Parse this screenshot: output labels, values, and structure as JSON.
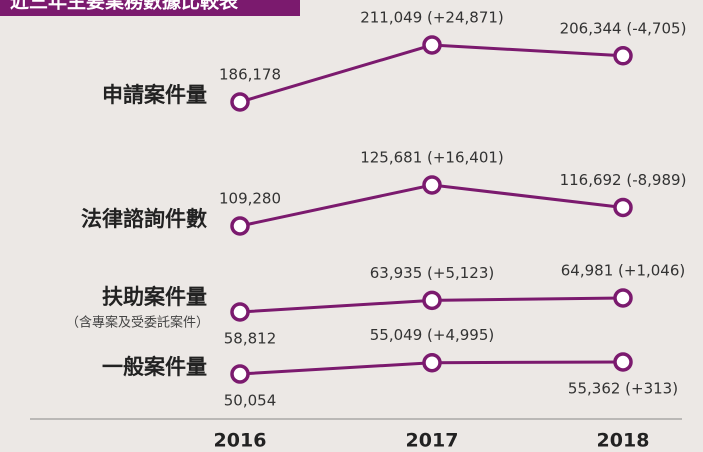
{
  "chart_data": {
    "type": "line",
    "title": "近三年主要業務數據比較表",
    "categories": [
      "2016",
      "2017",
      "2018"
    ],
    "color": "#7b1a6e",
    "series": [
      {
        "name": "申請案件量",
        "values": [
          186178,
          211049,
          206344
        ],
        "value_labels": [
          "186,178",
          "211,049 (+24,871)",
          "206,344 (-4,705)"
        ]
      },
      {
        "name": "法律諮詢件數",
        "values": [
          109280,
          125681,
          116692
        ],
        "value_labels": [
          "109,280",
          "125,681 (+16,401)",
          "116,692 (-8,989)"
        ]
      },
      {
        "name": "扶助案件量",
        "note": "（含專案及受委託案件）",
        "values": [
          58812,
          63935,
          64981
        ],
        "value_labels": [
          "58,812",
          "63,935 (+5,123)",
          "64,981 (+1,046)"
        ]
      },
      {
        "name": "一般案件量",
        "values": [
          50054,
          55049,
          55362
        ],
        "value_labels": [
          "50,054",
          "55,049 (+4,995)",
          "55,362 (+313)"
        ]
      }
    ]
  }
}
